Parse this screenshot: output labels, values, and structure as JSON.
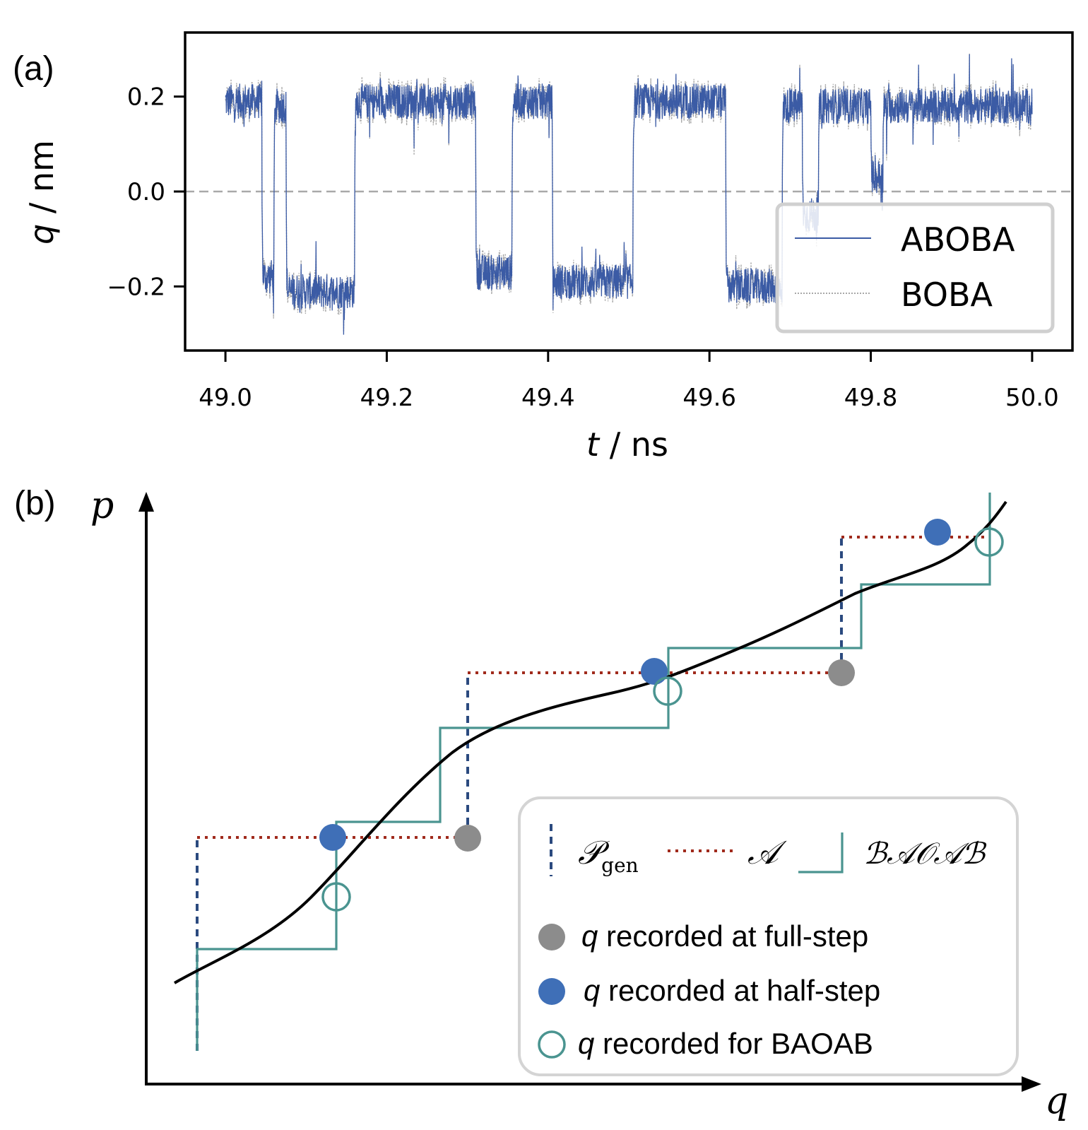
{
  "chart_data": [
    {
      "panel_label": "(a)",
      "type": "line",
      "xlabel_var": "t",
      "xlabel_unit": " / ns",
      "ylabel_var": "q",
      "ylabel_unit": " / nm",
      "xlim": [
        48.95,
        50.05
      ],
      "ylim": [
        -0.335,
        0.335
      ],
      "x_ticks": [
        "49.0",
        "49.2",
        "49.4",
        "49.6",
        "49.8",
        "50.0"
      ],
      "x_tick_values": [
        49.0,
        49.2,
        49.4,
        49.6,
        49.8,
        50.0
      ],
      "y_ticks": [
        "0.2",
        "0.0",
        "−0.2"
      ],
      "y_tick_values": [
        0.2,
        0.0,
        -0.2
      ],
      "reference_line_y": 0.0,
      "legend": [
        "ABOBA",
        "BOBA"
      ],
      "series": [
        {
          "name": "ABOBA",
          "color": "#3b5ba5",
          "style": "solid"
        },
        {
          "name": "BOBA",
          "color": "#a8a8a8",
          "style": "dotted"
        }
      ],
      "states": [
        {
          "t_start": 49.0,
          "t_end": 49.045,
          "mean": 0.19
        },
        {
          "t_start": 49.045,
          "t_end": 49.06,
          "mean": -0.18
        },
        {
          "t_start": 49.06,
          "t_end": 49.075,
          "mean": 0.18
        },
        {
          "t_start": 49.075,
          "t_end": 49.16,
          "mean": -0.21
        },
        {
          "t_start": 49.16,
          "t_end": 49.31,
          "mean": 0.19
        },
        {
          "t_start": 49.31,
          "t_end": 49.355,
          "mean": -0.17
        },
        {
          "t_start": 49.355,
          "t_end": 49.405,
          "mean": 0.19
        },
        {
          "t_start": 49.405,
          "t_end": 49.505,
          "mean": -0.19
        },
        {
          "t_start": 49.505,
          "t_end": 49.62,
          "mean": 0.19
        },
        {
          "t_start": 49.62,
          "t_end": 49.69,
          "mean": -0.2
        },
        {
          "t_start": 49.69,
          "t_end": 49.715,
          "mean": 0.18
        },
        {
          "t_start": 49.715,
          "t_end": 49.735,
          "mean": -0.05
        },
        {
          "t_start": 49.735,
          "t_end": 49.8,
          "mean": 0.18
        },
        {
          "t_start": 49.8,
          "t_end": 49.815,
          "mean": 0.03
        },
        {
          "t_start": 49.815,
          "t_end": 50.0,
          "mean": 0.18
        }
      ]
    },
    {
      "panel_label": "(b)",
      "type": "line",
      "xlabel": "q",
      "ylabel": "p",
      "legend": {
        "p_gen": "𝒫",
        "p_gen_sub": "gen",
        "a": "𝒜",
        "baoab": "ℬ𝒜𝒪𝒜ℬ",
        "full_step": "q recorded at full-step",
        "half_step": "q recorded at half-step",
        "baoab_rec": "q recorded for BAOAB",
        "q_italic": "q",
        "full_step_rest": " recorded at full-step",
        "half_step_rest": " recorded at half-step",
        "baoab_rest": " recorded for BAOAB"
      },
      "colors": {
        "p_gen": "#2b4a7f",
        "a": "#a02a1c",
        "baoab": "#4a9490",
        "curve": "#000000",
        "full_step_dot": "#8c8c8c",
        "half_step_dot": "#3f6fb7",
        "legend_border": "#d4d4d4"
      },
      "step_points": [
        {
          "q": 0.02,
          "p_gen_from": -0.08,
          "p_gen_to": 0.42,
          "half_q": 0.18,
          "full_q": 0.33
        },
        {
          "q": 0.33,
          "p_gen_from": 0.42,
          "p_gen_to": 0.79,
          "half_q": 0.52,
          "full_q": 0.76
        },
        {
          "q": 0.76,
          "p_gen_from": 0.79,
          "p_gen_to": 0.98,
          "half_q": 0.86,
          "full_q": null
        }
      ]
    }
  ]
}
